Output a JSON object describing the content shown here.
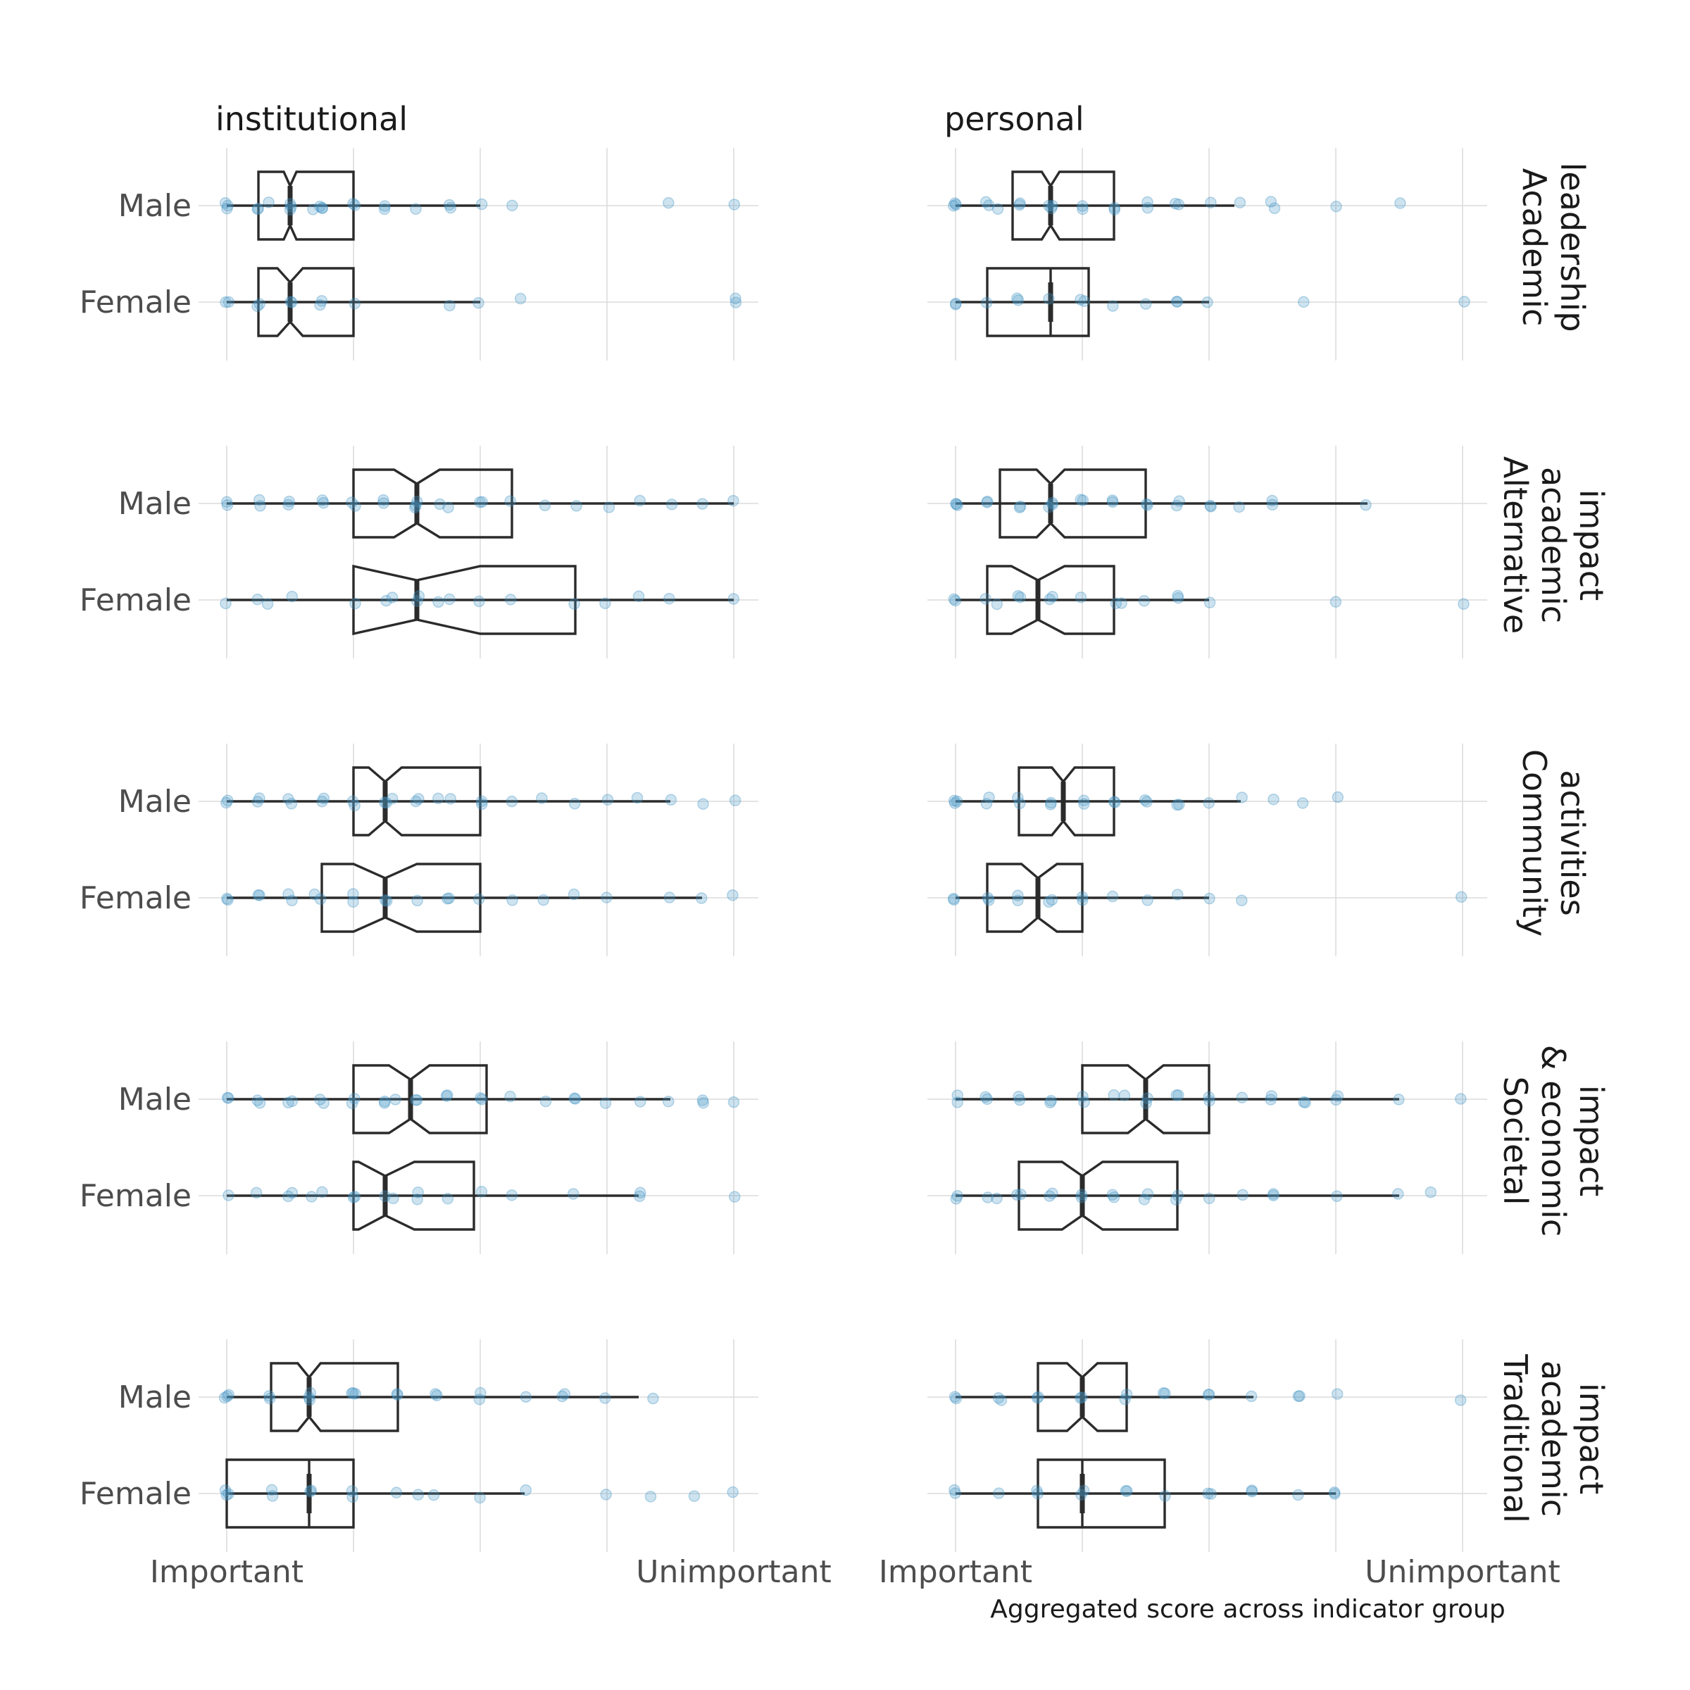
{
  "chart_data": {
    "type": "boxplot",
    "x_title": "Aggregated score across indicator group",
    "x_domain": [
      0,
      1
    ],
    "x_ticks": [
      {
        "value": 0,
        "label": "Important"
      },
      {
        "value": 0.25,
        "label": ""
      },
      {
        "value": 0.5,
        "label": ""
      },
      {
        "value": 0.75,
        "label": ""
      },
      {
        "value": 1,
        "label": "Unimportant"
      }
    ],
    "columns": [
      "institutional",
      "personal"
    ],
    "rows": [
      {
        "label": "Academic leadership",
        "lines": [
          "Academic",
          "leadership"
        ]
      },
      {
        "label": "Alternative academic impact",
        "lines": [
          "Alternative",
          "academic",
          "impact"
        ]
      },
      {
        "label": "Community activities",
        "lines": [
          "Community",
          "activities"
        ]
      },
      {
        "label": "Societal & economic impact",
        "lines": [
          "Societal",
          "& economic",
          "impact"
        ]
      },
      {
        "label": "Traditional academic impact",
        "lines": [
          "Traditional",
          "academic",
          "impact"
        ]
      }
    ],
    "groups": [
      "Male",
      "Female"
    ],
    "panels": [
      {
        "row": 0,
        "col": 0,
        "boxes": [
          {
            "group": "Male",
            "min": 0,
            "q1": 0.0625,
            "median": 0.125,
            "q3": 0.25,
            "max": 0.5,
            "notch": [
              0.1125,
              0.1375
            ],
            "points": [
              0,
              0,
              0,
              0.0625,
              0.0625,
              0.08,
              0.125,
              0.125,
              0.125,
              0.17,
              0.1875,
              0.1875,
              0.1875,
              0.25,
              0.25,
              0.3125,
              0.3125,
              0.375,
              0.4375,
              0.4375,
              0.5,
              0.56,
              0.875,
              1
            ]
          },
          {
            "group": "Female",
            "min": 0,
            "q1": 0.0625,
            "median": 0.125,
            "q3": 0.25,
            "max": 0.5,
            "notch": [
              0.1,
              0.15
            ],
            "points": [
              0,
              0,
              0.0625,
              0.0625,
              0.125,
              0.125,
              0.1875,
              0.1875,
              0.25,
              0.4375,
              0.5,
              0.58,
              1,
              1
            ]
          }
        ]
      },
      {
        "row": 0,
        "col": 1,
        "boxes": [
          {
            "group": "Male",
            "min": 0,
            "q1": 0.1125,
            "median": 0.1875,
            "q3": 0.3125,
            "max": 0.55,
            "notch": [
              0.17,
              0.205
            ],
            "points": [
              0,
              0,
              0,
              0.0625,
              0.0625,
              0.08,
              0.125,
              0.125,
              0.1875,
              0.1875,
              0.1875,
              0.25,
              0.25,
              0.3125,
              0.3125,
              0.375,
              0.375,
              0.4375,
              0.4375,
              0.5,
              0.5625,
              0.625,
              0.625,
              0.75,
              0.875
            ]
          },
          {
            "group": "Female",
            "min": 0,
            "q1": 0.0625,
            "median": 0.1875,
            "q3": 0.2625,
            "max": 0.5,
            "notch": [
              0.1875,
              0.1875
            ],
            "points": [
              0,
              0,
              0.0625,
              0.125,
              0.125,
              0.1875,
              0.25,
              0.25,
              0.3125,
              0.375,
              0.4375,
              0.4375,
              0.5,
              0.6875,
              1
            ]
          }
        ]
      },
      {
        "row": 1,
        "col": 0,
        "boxes": [
          {
            "group": "Male",
            "min": 0,
            "q1": 0.25,
            "median": 0.375,
            "q3": 0.5625,
            "max": 1,
            "notch": [
              0.33,
              0.42
            ],
            "points": [
              0,
              0,
              0.0625,
              0.0625,
              0.125,
              0.125,
              0.1875,
              0.1875,
              0.25,
              0.25,
              0.3125,
              0.3125,
              0.375,
              0.375,
              0.375,
              0.42,
              0.4375,
              0.5,
              0.5,
              0.5625,
              0.625,
              0.6875,
              0.75,
              0.8125,
              0.875,
              0.9375,
              1
            ]
          },
          {
            "group": "Female",
            "min": 0,
            "q1": 0.25,
            "median": 0.375,
            "q3": 0.6875,
            "max": 1,
            "notch": [
              0.25,
              0.5
            ],
            "points": [
              0,
              0.0625,
              0.08,
              0.125,
              0.25,
              0.3125,
              0.33,
              0.375,
              0.375,
              0.42,
              0.4375,
              0.5,
              0.5625,
              0.6875,
              0.75,
              0.8125,
              0.875,
              1
            ]
          }
        ]
      },
      {
        "row": 1,
        "col": 1,
        "boxes": [
          {
            "group": "Male",
            "min": 0,
            "q1": 0.0875,
            "median": 0.1875,
            "q3": 0.375,
            "max": 0.8125,
            "notch": [
              0.16,
              0.215
            ],
            "points": [
              0,
              0,
              0,
              0.0625,
              0.0625,
              0.125,
              0.125,
              0.1875,
              0.1875,
              0.1875,
              0.25,
              0.25,
              0.3125,
              0.3125,
              0.375,
              0.375,
              0.4375,
              0.4375,
              0.5,
              0.5,
              0.5625,
              0.625,
              0.625,
              0.8125
            ]
          },
          {
            "group": "Female",
            "min": 0,
            "q1": 0.0625,
            "median": 0.1625,
            "q3": 0.3125,
            "max": 0.5,
            "notch": [
              0.11,
              0.215
            ],
            "points": [
              0,
              0,
              0.0625,
              0.08,
              0.125,
              0.125,
              0.1875,
              0.1875,
              0.25,
              0.3125,
              0.33,
              0.375,
              0.4375,
              0.4375,
              0.5,
              0.75,
              1
            ]
          }
        ]
      },
      {
        "row": 2,
        "col": 0,
        "boxes": [
          {
            "group": "Male",
            "min": 0,
            "q1": 0.25,
            "median": 0.3125,
            "q3": 0.5,
            "max": 0.875,
            "notch": [
              0.28,
              0.345
            ],
            "points": [
              0,
              0,
              0.0625,
              0.0625,
              0.125,
              0.125,
              0.1875,
              0.1875,
              0.25,
              0.25,
              0.3125,
              0.3125,
              0.33,
              0.375,
              0.375,
              0.42,
              0.4375,
              0.5,
              0.5,
              0.5625,
              0.625,
              0.6875,
              0.75,
              0.8125,
              0.875,
              0.9375,
              1
            ]
          },
          {
            "group": "Female",
            "min": 0,
            "q1": 0.1875,
            "median": 0.3125,
            "q3": 0.5,
            "max": 0.9375,
            "notch": [
              0.25,
              0.375
            ],
            "points": [
              0,
              0,
              0.0625,
              0.0625,
              0.125,
              0.125,
              0.17,
              0.1875,
              0.25,
              0.25,
              0.3125,
              0.3125,
              0.375,
              0.4375,
              0.4375,
              0.5,
              0.5625,
              0.625,
              0.6875,
              0.75,
              0.875,
              0.9375,
              1
            ]
          }
        ]
      },
      {
        "row": 2,
        "col": 1,
        "boxes": [
          {
            "group": "Male",
            "min": 0,
            "q1": 0.125,
            "median": 0.2125,
            "q3": 0.3125,
            "max": 0.5625,
            "notch": [
              0.19,
              0.235
            ],
            "points": [
              0,
              0,
              0,
              0.0625,
              0.0625,
              0.125,
              0.125,
              0.1875,
              0.1875,
              0.25,
              0.25,
              0.3125,
              0.3125,
              0.375,
              0.375,
              0.4375,
              0.4375,
              0.5,
              0.5625,
              0.625,
              0.6875,
              0.75
            ]
          },
          {
            "group": "Female",
            "min": 0,
            "q1": 0.0625,
            "median": 0.1625,
            "q3": 0.25,
            "max": 0.5,
            "notch": [
              0.13,
              0.2
            ],
            "points": [
              0,
              0,
              0.0625,
              0.0625,
              0.125,
              0.125,
              0.1875,
              0.1875,
              0.25,
              0.25,
              0.3125,
              0.375,
              0.4375,
              0.5,
              0.5625,
              1
            ]
          }
        ]
      },
      {
        "row": 3,
        "col": 0,
        "boxes": [
          {
            "group": "Male",
            "min": 0,
            "q1": 0.25,
            "median": 0.3625,
            "q3": 0.5125,
            "max": 0.875,
            "notch": [
              0.32,
              0.4
            ],
            "points": [
              0,
              0,
              0.0625,
              0.0625,
              0.125,
              0.125,
              0.1875,
              0.1875,
              0.25,
              0.25,
              0.3125,
              0.3125,
              0.33,
              0.375,
              0.375,
              0.4375,
              0.4375,
              0.5,
              0.5,
              0.5625,
              0.625,
              0.6875,
              0.6875,
              0.75,
              0.8125,
              0.875,
              0.9375,
              0.9375,
              1
            ]
          },
          {
            "group": "Female",
            "min": 0,
            "q1": 0.25,
            "median": 0.3125,
            "q3": 0.4875,
            "max": 0.8125,
            "notch": [
              0.26,
              0.37
            ],
            "points": [
              0,
              0.0625,
              0.125,
              0.125,
              0.17,
              0.1875,
              0.25,
              0.25,
              0.3125,
              0.33,
              0.375,
              0.375,
              0.4375,
              0.5,
              0.5625,
              0.6875,
              0.8125,
              0.8125,
              1
            ]
          }
        ]
      },
      {
        "row": 3,
        "col": 1,
        "boxes": [
          {
            "group": "Male",
            "min": 0,
            "q1": 0.25,
            "median": 0.375,
            "q3": 0.5,
            "max": 0.875,
            "notch": [
              0.34,
              0.41
            ],
            "points": [
              0,
              0,
              0.0625,
              0.0625,
              0.125,
              0.125,
              0.1875,
              0.1875,
              0.25,
              0.25,
              0.3125,
              0.33,
              0.375,
              0.375,
              0.4375,
              0.4375,
              0.5,
              0.5,
              0.5625,
              0.625,
              0.625,
              0.6875,
              0.6875,
              0.75,
              0.75,
              0.875,
              1
            ]
          },
          {
            "group": "Female",
            "min": 0,
            "q1": 0.125,
            "median": 0.25,
            "q3": 0.4375,
            "max": 0.875,
            "notch": [
              0.21,
              0.29
            ],
            "points": [
              0,
              0,
              0.0625,
              0.08,
              0.125,
              0.125,
              0.1875,
              0.1875,
              0.25,
              0.25,
              0.3125,
              0.3125,
              0.375,
              0.375,
              0.4375,
              0.4375,
              0.5,
              0.5625,
              0.625,
              0.625,
              0.75,
              0.875,
              0.9375
            ]
          }
        ]
      },
      {
        "row": 4,
        "col": 0,
        "boxes": [
          {
            "group": "Male",
            "min": 0,
            "q1": 0.0875,
            "median": 0.1625,
            "q3": 0.3375,
            "max": 0.8125,
            "notch": [
              0.14,
              0.185
            ],
            "points": [
              0,
              0,
              0,
              0.0875,
              0.0875,
              0.1625,
              0.1625,
              0.1625,
              0.25,
              0.25,
              0.25,
              0.3375,
              0.3375,
              0.4125,
              0.4125,
              0.5,
              0.5,
              0.5875,
              0.6625,
              0.6625,
              0.75,
              0.8375
            ]
          },
          {
            "group": "Female",
            "min": 0,
            "q1": 0,
            "median": 0.1625,
            "q3": 0.25,
            "max": 0.5875,
            "notch": [
              0.1625,
              0.1625
            ],
            "points": [
              0,
              0,
              0,
              0.0875,
              0.0875,
              0.1625,
              0.1625,
              0.25,
              0.25,
              0.3375,
              0.375,
              0.4125,
              0.5,
              0.5875,
              0.75,
              0.8375,
              0.925,
              1
            ]
          }
        ]
      },
      {
        "row": 4,
        "col": 1,
        "boxes": [
          {
            "group": "Male",
            "min": 0,
            "q1": 0.1625,
            "median": 0.25,
            "q3": 0.3375,
            "max": 0.5875,
            "notch": [
              0.22,
              0.28
            ],
            "points": [
              0,
              0,
              0.0875,
              0.0875,
              0.1625,
              0.1625,
              0.25,
              0.25,
              0.3375,
              0.3375,
              0.4125,
              0.4125,
              0.5,
              0.5,
              0.5875,
              0.675,
              0.675,
              0.75,
              1
            ]
          },
          {
            "group": "Female",
            "min": 0,
            "q1": 0.1625,
            "median": 0.25,
            "q3": 0.4125,
            "max": 0.75,
            "notch": [
              0.25,
              0.25
            ],
            "points": [
              0,
              0,
              0.0875,
              0.1625,
              0.1625,
              0.25,
              0.25,
              0.3375,
              0.3375,
              0.4125,
              0.5,
              0.5,
              0.5875,
              0.5875,
              0.675,
              0.75,
              0.75
            ]
          }
        ]
      }
    ]
  }
}
